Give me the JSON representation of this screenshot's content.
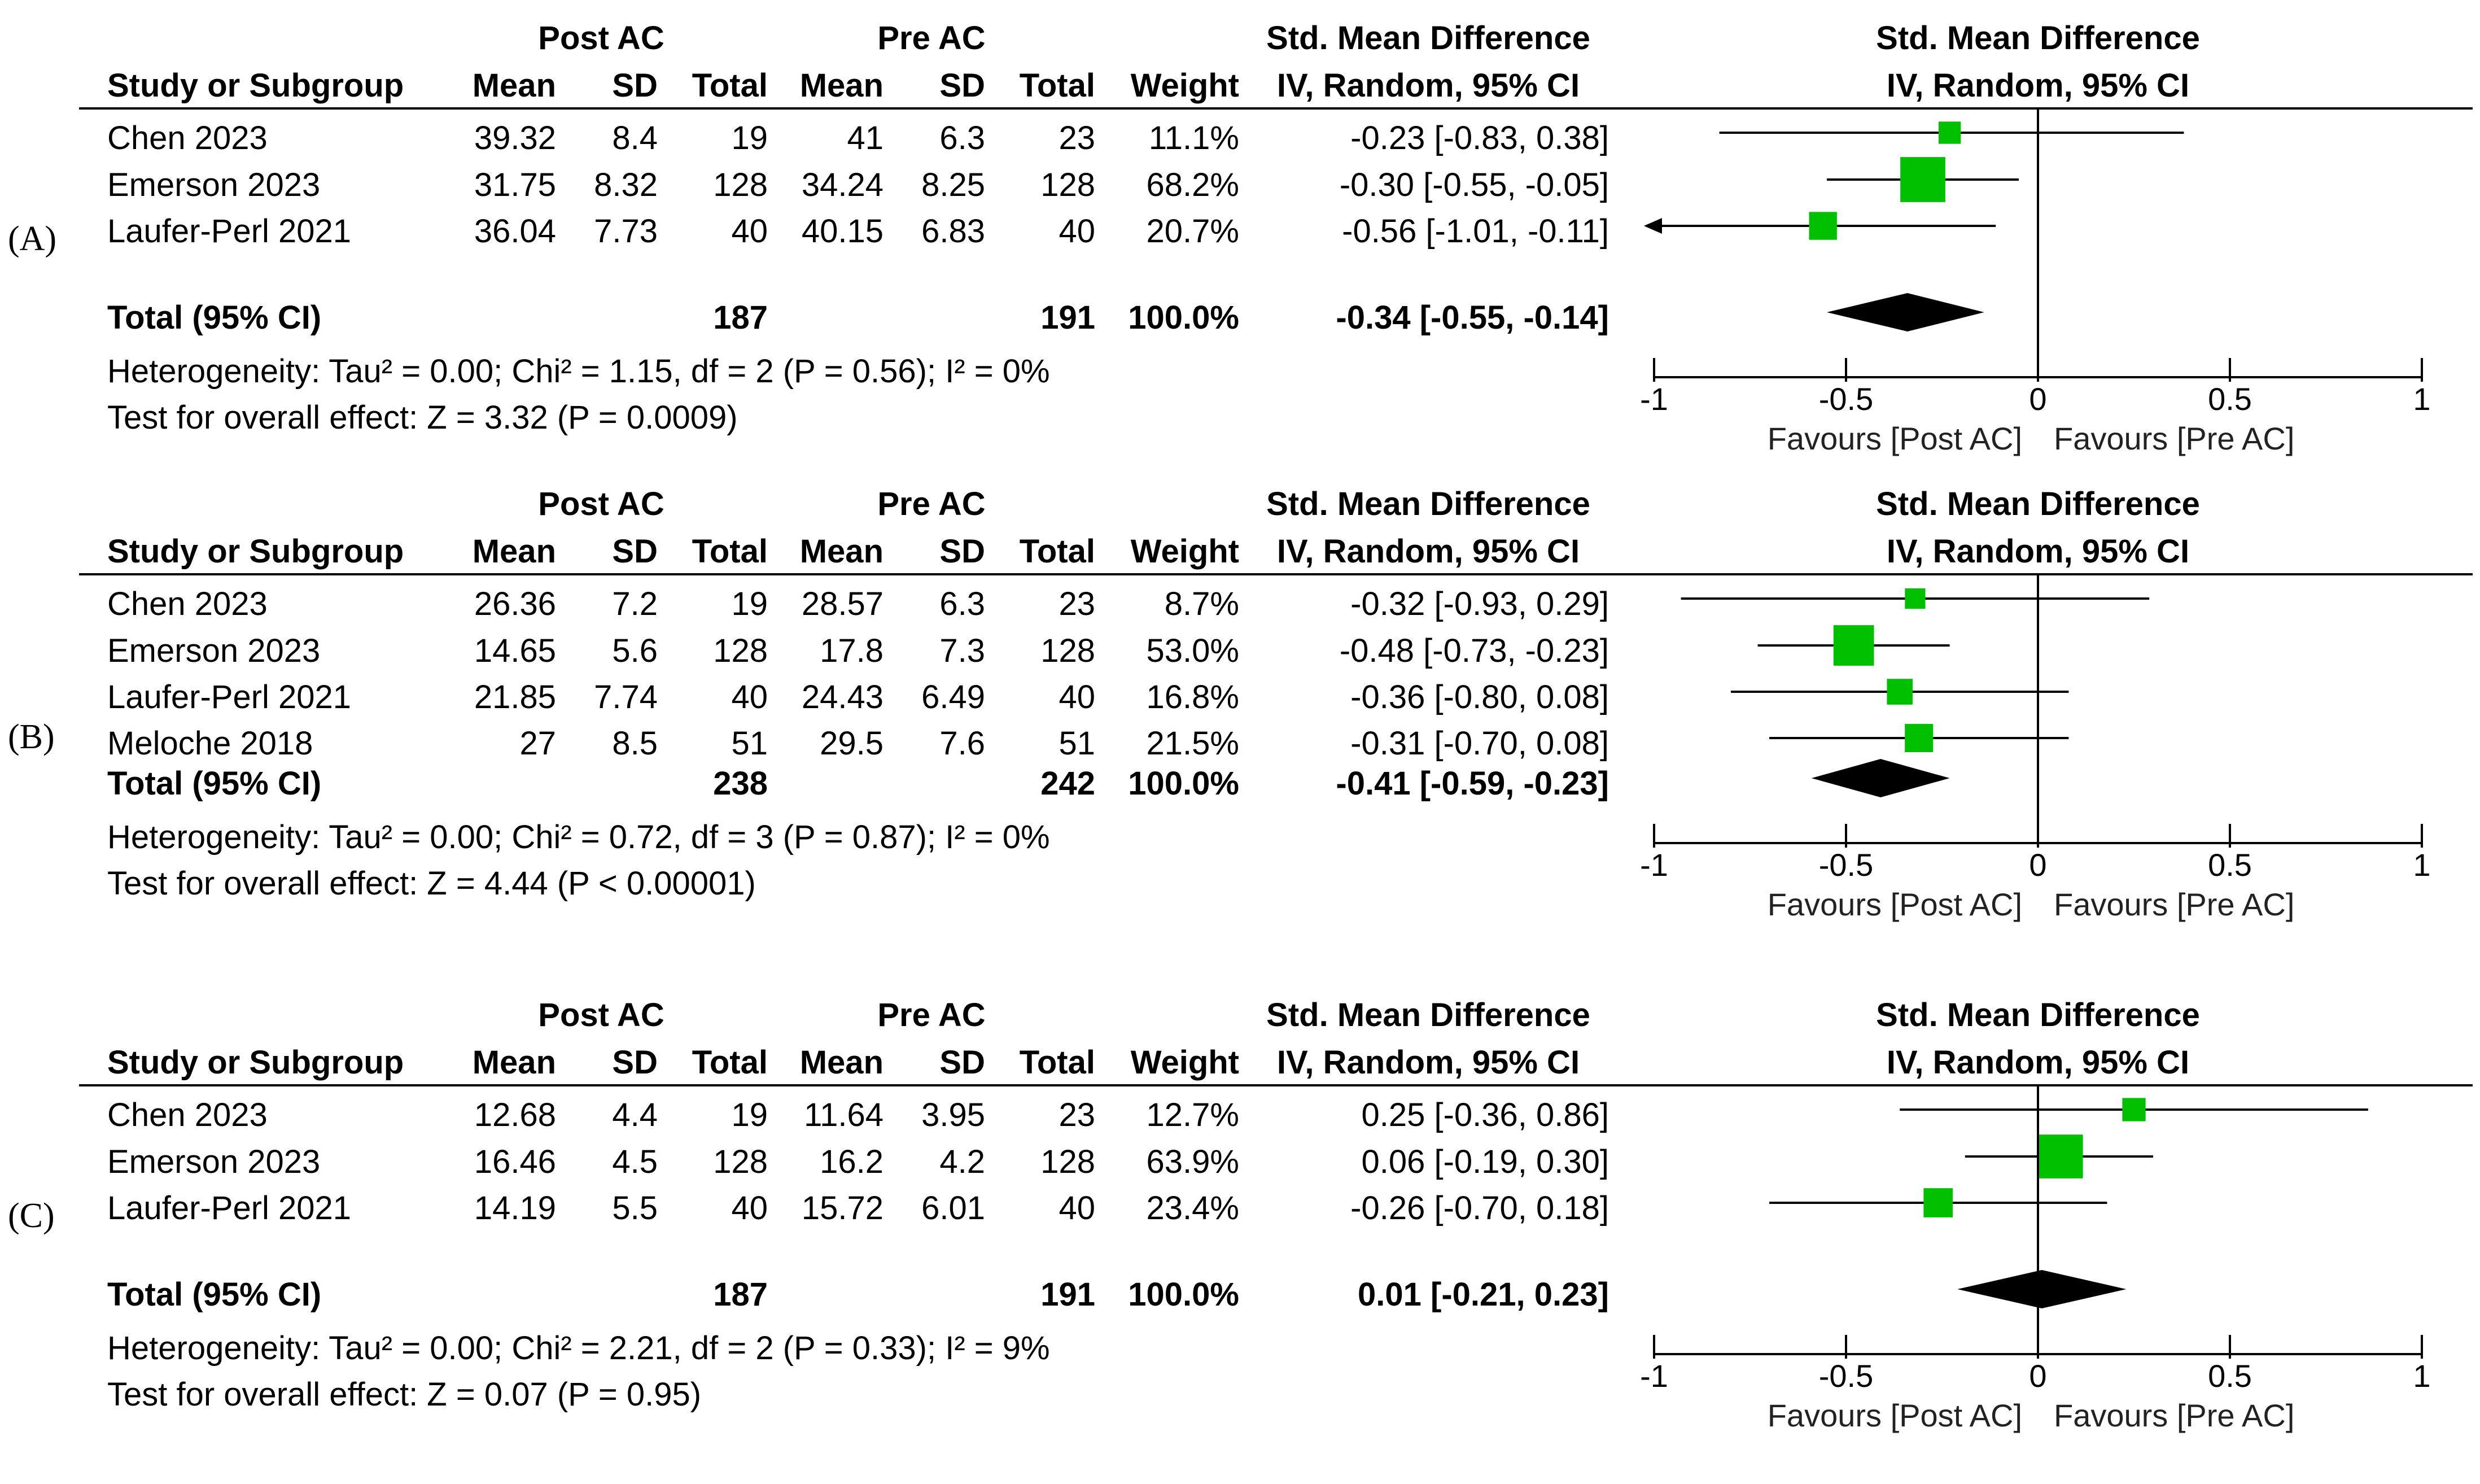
{
  "headers": {
    "group1": "Post AC",
    "group2": "Pre AC",
    "study": "Study or Subgroup",
    "mean": "Mean",
    "sd": "SD",
    "total": "Total",
    "weight": "Weight",
    "smd_title": "Std. Mean Difference",
    "smd_method": "IV, Random, 95% CI"
  },
  "chart_data": [
    {
      "type": "forest",
      "panel_label": "(A)",
      "title": "Std. Mean Difference",
      "subtitle": "IV, Random, 95% CI",
      "xlim": [
        -1,
        1
      ],
      "xticks": [
        "-1",
        "-0.5",
        "0",
        "0.5",
        "1"
      ],
      "xtick_values": [
        -1,
        -0.5,
        0,
        0.5,
        1
      ],
      "label_left": "Favours [Post AC]",
      "label_right": "Favours [Pre AC]",
      "studies": [
        {
          "name": "Chen 2023",
          "m1": "39.32",
          "sd1": "8.4",
          "n1": "19",
          "m2": "41",
          "sd2": "6.3",
          "n2": "23",
          "weight": "11.1%",
          "ci": "-0.23 [-0.83, 0.38]",
          "est": -0.23,
          "lo": -0.83,
          "hi": 0.38,
          "w": 11.1
        },
        {
          "name": "Emerson 2023",
          "m1": "31.75",
          "sd1": "8.32",
          "n1": "128",
          "m2": "34.24",
          "sd2": "8.25",
          "n2": "128",
          "weight": "68.2%",
          "ci": "-0.30 [-0.55, -0.05]",
          "est": -0.3,
          "lo": -0.55,
          "hi": -0.05,
          "w": 68.2
        },
        {
          "name": "Laufer-Perl 2021",
          "m1": "36.04",
          "sd1": "7.73",
          "n1": "40",
          "m2": "40.15",
          "sd2": "6.83",
          "n2": "40",
          "weight": "20.7%",
          "ci": "-0.56 [-1.01, -0.11]",
          "est": -0.56,
          "lo": -1.01,
          "hi": -0.11,
          "w": 20.7
        }
      ],
      "total": {
        "label": "Total (95% CI)",
        "n1": "187",
        "n2": "191",
        "weight": "100.0%",
        "ci": "-0.34 [-0.55, -0.14]",
        "est": -0.34,
        "lo": -0.55,
        "hi": -0.14
      },
      "heterogeneity": "Heterogeneity: Tau² = 0.00; Chi² = 1.15, df = 2 (P = 0.56); I² = 0%",
      "overall": "Test for overall effect: Z = 3.32 (P = 0.0009)"
    },
    {
      "type": "forest",
      "panel_label": "(B)",
      "title": "Std. Mean Difference",
      "subtitle": "IV, Random, 95% CI",
      "xlim": [
        -1,
        1
      ],
      "xticks": [
        "-1",
        "-0.5",
        "0",
        "0.5",
        "1"
      ],
      "xtick_values": [
        -1,
        -0.5,
        0,
        0.5,
        1
      ],
      "label_left": "Favours [Post AC]",
      "label_right": "Favours [Pre AC]",
      "studies": [
        {
          "name": "Chen 2023",
          "m1": "26.36",
          "sd1": "7.2",
          "n1": "19",
          "m2": "28.57",
          "sd2": "6.3",
          "n2": "23",
          "weight": "8.7%",
          "ci": "-0.32 [-0.93, 0.29]",
          "est": -0.32,
          "lo": -0.93,
          "hi": 0.29,
          "w": 8.7
        },
        {
          "name": "Emerson 2023",
          "m1": "14.65",
          "sd1": "5.6",
          "n1": "128",
          "m2": "17.8",
          "sd2": "7.3",
          "n2": "128",
          "weight": "53.0%",
          "ci": "-0.48 [-0.73, -0.23]",
          "est": -0.48,
          "lo": -0.73,
          "hi": -0.23,
          "w": 53.0
        },
        {
          "name": "Laufer-Perl 2021",
          "m1": "21.85",
          "sd1": "7.74",
          "n1": "40",
          "m2": "24.43",
          "sd2": "6.49",
          "n2": "40",
          "weight": "16.8%",
          "ci": "-0.36 [-0.80, 0.08]",
          "est": -0.36,
          "lo": -0.8,
          "hi": 0.08,
          "w": 16.8
        },
        {
          "name": "Meloche 2018",
          "m1": "27",
          "sd1": "8.5",
          "n1": "51",
          "m2": "29.5",
          "sd2": "7.6",
          "n2": "51",
          "weight": "21.5%",
          "ci": "-0.31 [-0.70, 0.08]",
          "est": -0.31,
          "lo": -0.7,
          "hi": 0.08,
          "w": 21.5
        }
      ],
      "total": {
        "label": "Total (95% CI)",
        "n1": "238",
        "n2": "242",
        "weight": "100.0%",
        "ci": "-0.41 [-0.59, -0.23]",
        "est": -0.41,
        "lo": -0.59,
        "hi": -0.23
      },
      "heterogeneity": "Heterogeneity: Tau² = 0.00; Chi² = 0.72, df = 3 (P = 0.87); I² = 0%",
      "overall": "Test for overall effect: Z = 4.44 (P < 0.00001)"
    },
    {
      "type": "forest",
      "panel_label": "(C)",
      "title": "Std. Mean Difference",
      "subtitle": "IV, Random, 95% CI",
      "xlim": [
        -1,
        1
      ],
      "xticks": [
        "-1",
        "-0.5",
        "0",
        "0.5",
        "1"
      ],
      "xtick_values": [
        -1,
        -0.5,
        0,
        0.5,
        1
      ],
      "label_left": "Favours [Post AC]",
      "label_right": "Favours [Pre AC]",
      "studies": [
        {
          "name": "Chen 2023",
          "m1": "12.68",
          "sd1": "4.4",
          "n1": "19",
          "m2": "11.64",
          "sd2": "3.95",
          "n2": "23",
          "weight": "12.7%",
          "ci": "0.25 [-0.36, 0.86]",
          "est": 0.25,
          "lo": -0.36,
          "hi": 0.86,
          "w": 12.7
        },
        {
          "name": "Emerson 2023",
          "m1": "16.46",
          "sd1": "4.5",
          "n1": "128",
          "m2": "16.2",
          "sd2": "4.2",
          "n2": "128",
          "weight": "63.9%",
          "ci": "0.06 [-0.19, 0.30]",
          "est": 0.06,
          "lo": -0.19,
          "hi": 0.3,
          "w": 63.9
        },
        {
          "name": "Laufer-Perl 2021",
          "m1": "14.19",
          "sd1": "5.5",
          "n1": "40",
          "m2": "15.72",
          "sd2": "6.01",
          "n2": "40",
          "weight": "23.4%",
          "ci": "-0.26 [-0.70, 0.18]",
          "est": -0.26,
          "lo": -0.7,
          "hi": 0.18,
          "w": 23.4
        }
      ],
      "total": {
        "label": "Total (95% CI)",
        "n1": "187",
        "n2": "191",
        "weight": "100.0%",
        "ci": "0.01 [-0.21, 0.23]",
        "est": 0.01,
        "lo": -0.21,
        "hi": 0.23
      },
      "heterogeneity": "Heterogeneity: Tau² = 0.00; Chi² = 2.21, df = 2 (P = 0.33); I² = 9%",
      "overall": "Test for overall effect: Z = 0.07 (P = 0.95)"
    }
  ],
  "colors": {
    "marker": "#00c000",
    "diamond": "#000000",
    "line": "#000000",
    "text": "#000000"
  }
}
